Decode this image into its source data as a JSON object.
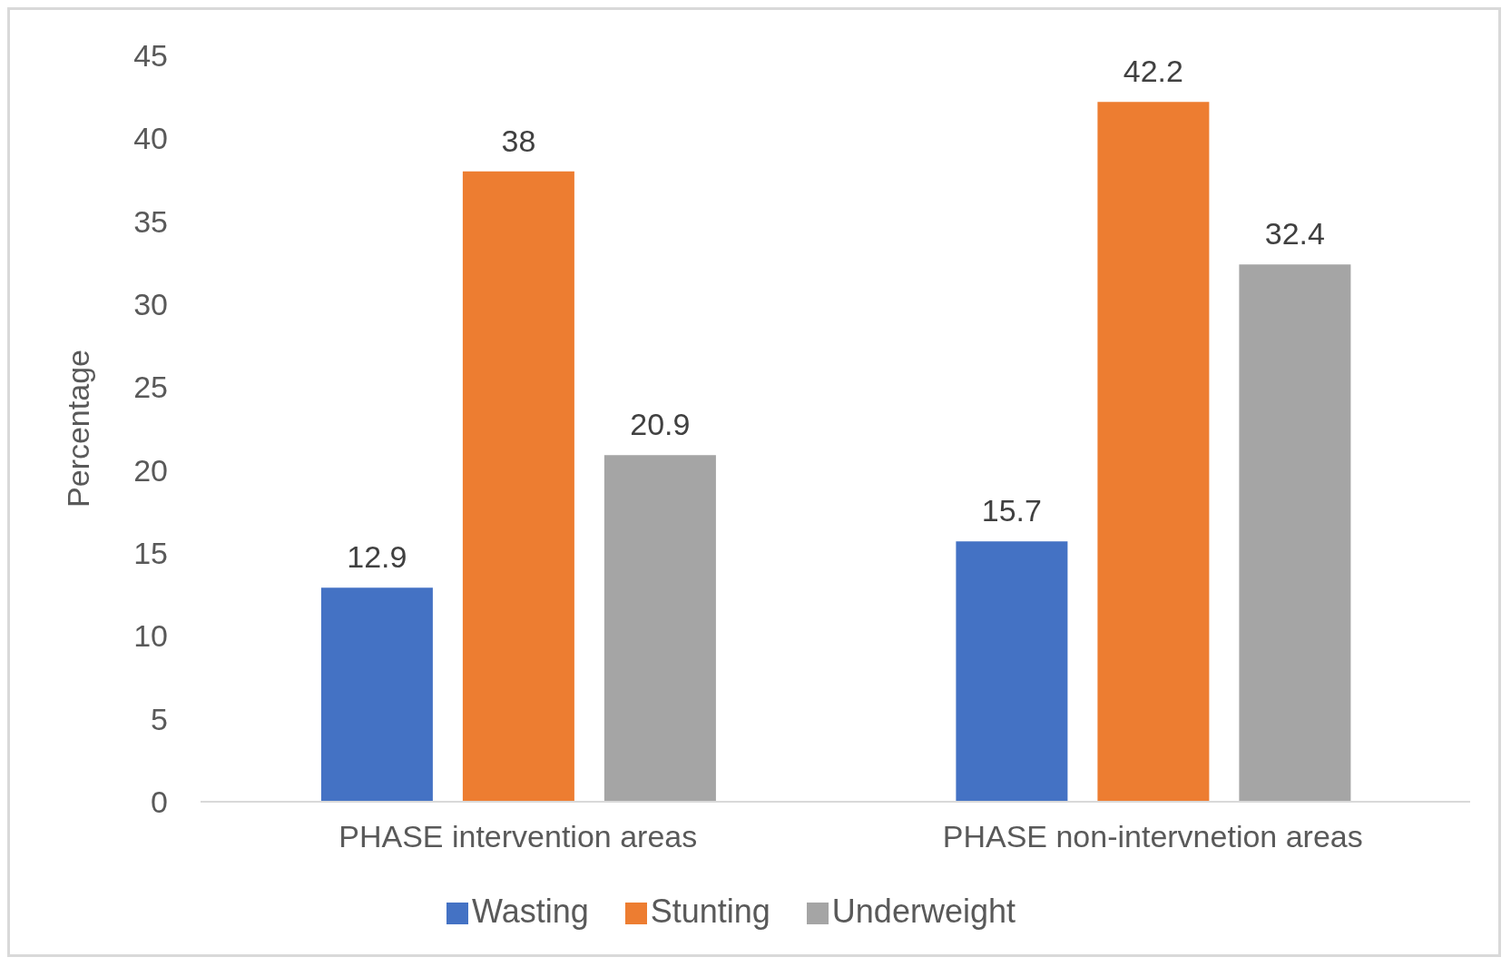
{
  "chart_data": {
    "type": "bar",
    "ylabel": "Percentage",
    "categories": [
      "PHASE intervention areas",
      "PHASE non-intervnetion areas"
    ],
    "series": [
      {
        "name": "Wasting",
        "color": "#4472c4",
        "values": [
          12.9,
          15.7
        ]
      },
      {
        "name": "Stunting",
        "color": "#ed7d31",
        "values": [
          38,
          42.2
        ]
      },
      {
        "name": "Underweight",
        "color": "#a5a5a5",
        "values": [
          20.9,
          32.4
        ]
      }
    ],
    "ylim": [
      0,
      45
    ],
    "yticks": [
      0,
      5,
      10,
      15,
      20,
      25,
      30,
      35,
      40,
      45
    ],
    "grid": false,
    "legend": "bottom",
    "data_labels": true
  }
}
